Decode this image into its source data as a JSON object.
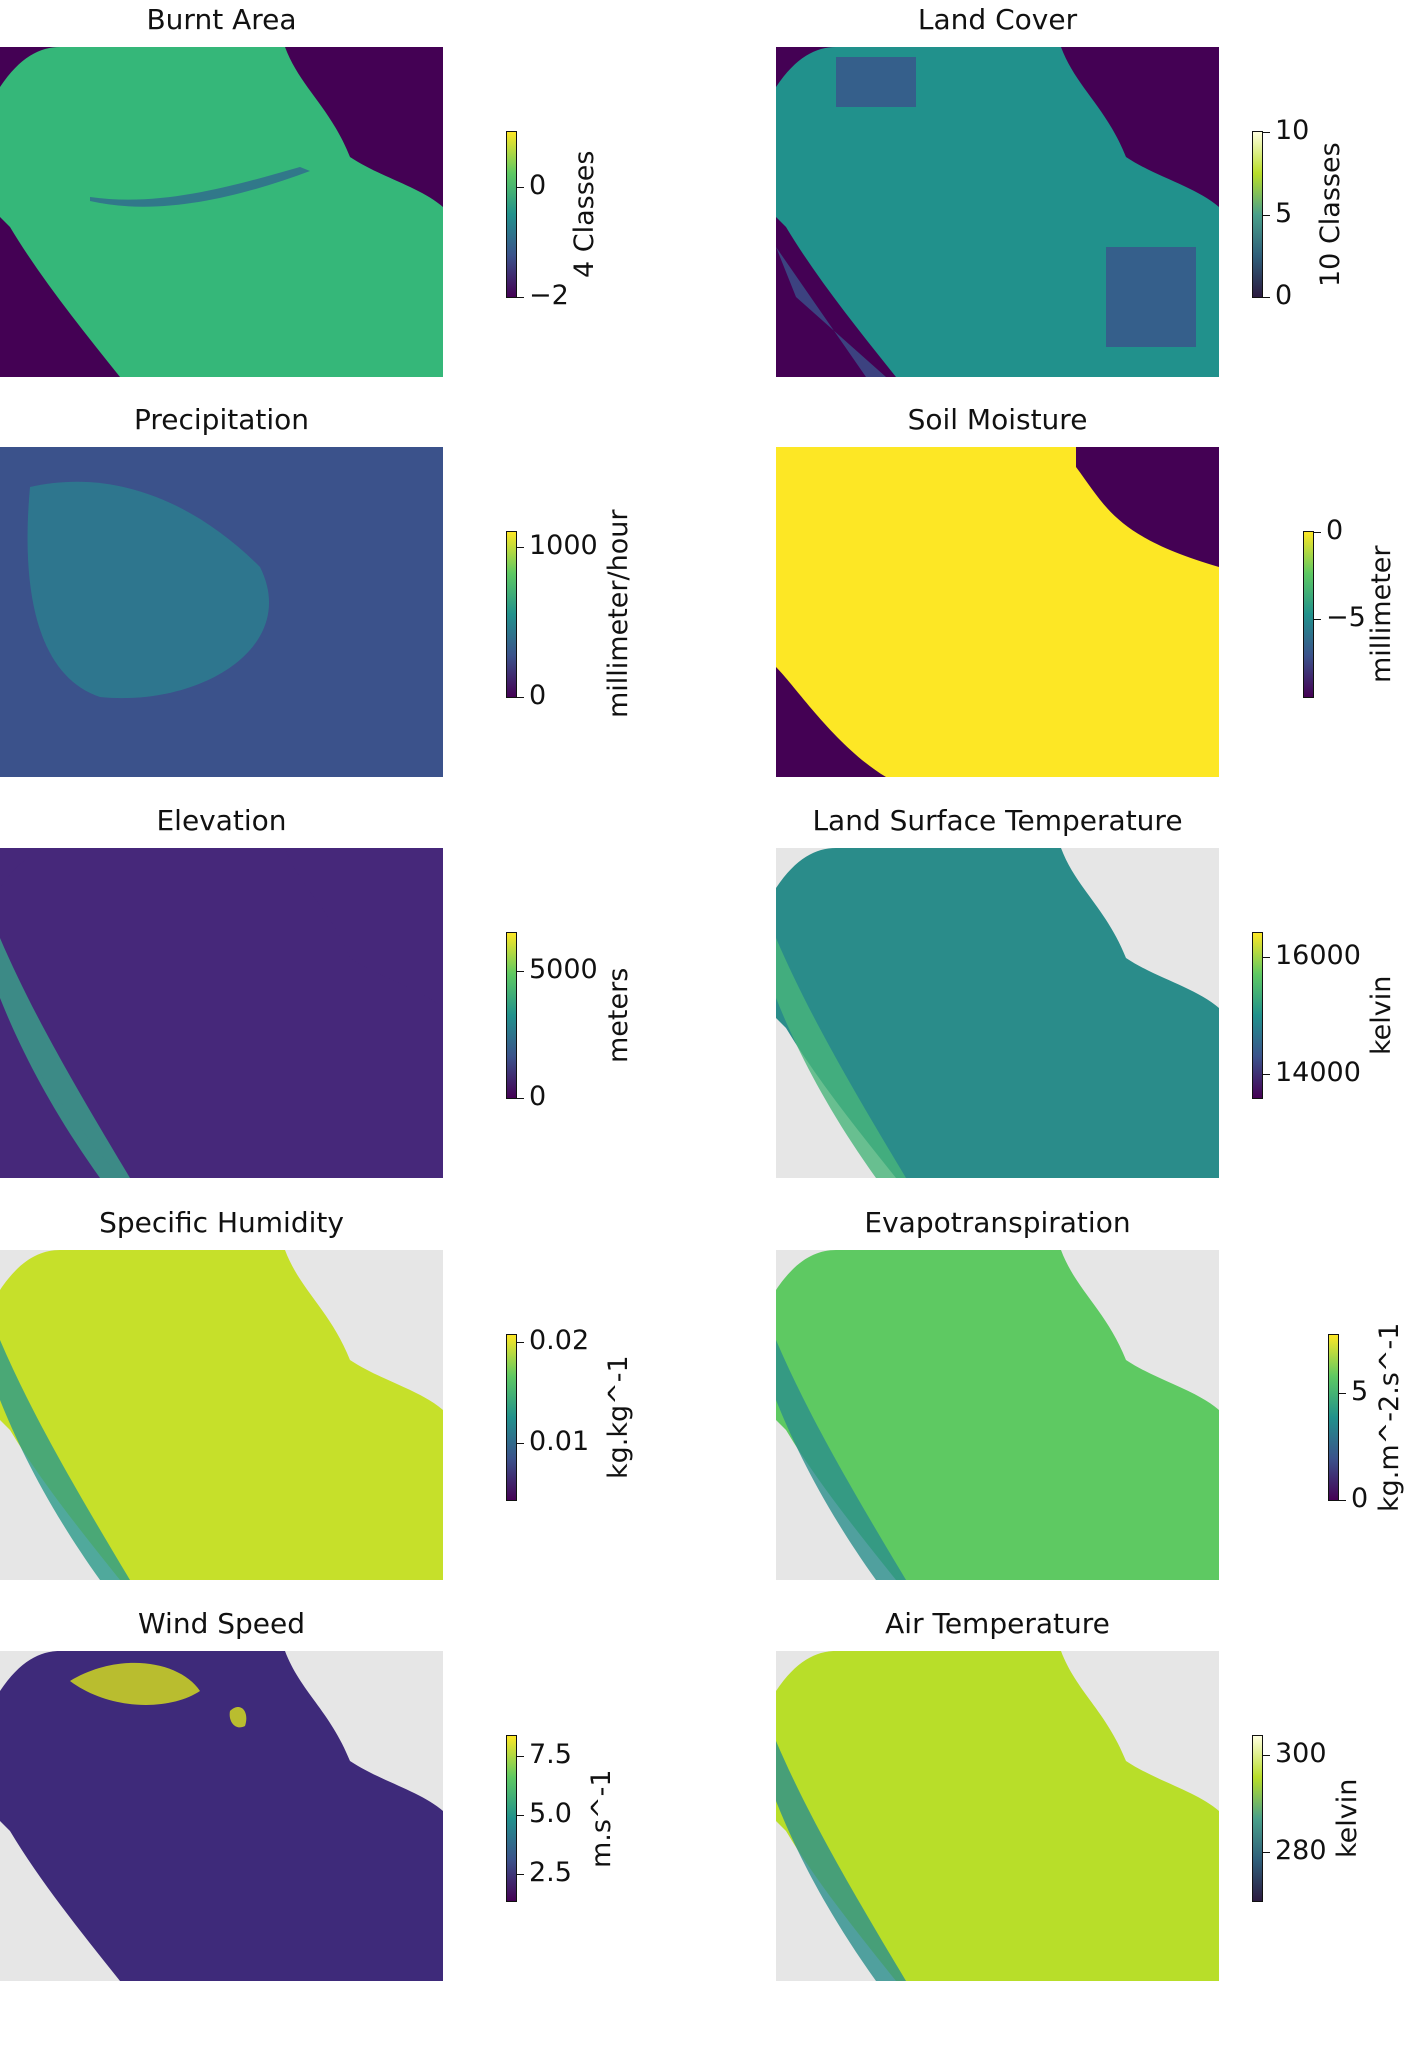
{
  "chart_data": [
    {
      "type": "heatmap",
      "title": "Burnt Area",
      "colorbar_label": "4 Classes",
      "vmin": -2,
      "vmax": 1,
      "ticks": [
        0,
        -2
      ],
      "tick_labels": [
        "0",
        "−2"
      ],
      "colors": {
        "land": "#35b779",
        "bg": "#440154",
        "accent": "#31688e"
      }
    },
    {
      "type": "heatmap",
      "title": "Land Cover",
      "colorbar_label": "10 Classes",
      "vmin": 0,
      "vmax": 10,
      "ticks": [
        10,
        5,
        0
      ],
      "tick_labels": [
        "10",
        "5",
        "0"
      ],
      "colors": {
        "land": "#21918c",
        "bg": "#440154",
        "accent": "#3b528b"
      }
    },
    {
      "type": "heatmap",
      "title": "Precipitation",
      "colorbar_label": "millimeter/hour",
      "vmin": 0,
      "vmax": 1100,
      "ticks": [
        1000,
        0
      ],
      "tick_labels": [
        "1000",
        "0"
      ],
      "colors": {
        "land": "#3b528b",
        "bg": "#3b528b",
        "accent": "#2c7f8e"
      }
    },
    {
      "type": "heatmap",
      "title": "Soil Moisture",
      "colorbar_label": "millimeter",
      "vmin": -9.5,
      "vmax": 0,
      "ticks": [
        0,
        -5
      ],
      "tick_labels": [
        "0",
        "−5"
      ],
      "colors": {
        "land": "#fde725",
        "bg": "#440154",
        "accent": "#fde725"
      }
    },
    {
      "type": "heatmap",
      "title": "Elevation",
      "colorbar_label": "meters",
      "vmin": 0,
      "vmax": 6500,
      "ticks": [
        5000,
        0
      ],
      "tick_labels": [
        "5000",
        "0"
      ],
      "colors": {
        "land": "#46287a",
        "bg": "#46287a",
        "accent": "#3aa38a"
      }
    },
    {
      "type": "heatmap",
      "title": "Land Surface Temperature",
      "colorbar_label": "kelvin",
      "vmin": 13600,
      "vmax": 16400,
      "ticks": [
        16000,
        14000
      ],
      "tick_labels": [
        "16000",
        "14000"
      ],
      "colors": {
        "land": "#2a8c8a",
        "bg": "#e6e6e6",
        "accent": "#49b57a"
      }
    },
    {
      "type": "heatmap",
      "title": "Specific Humidity",
      "colorbar_label": "kg.kg^-1",
      "vmin": 0.0043,
      "vmax": 0.0207,
      "ticks": [
        0.02,
        0.01
      ],
      "tick_labels": [
        "0.02",
        "0.01"
      ],
      "colors": {
        "land": "#c6e02a",
        "bg": "#e6e6e6",
        "accent": "#2a9a8a"
      }
    },
    {
      "type": "heatmap",
      "title": "Evapotranspiration",
      "colorbar_label": "kg.m^-2.s^-1",
      "vmin": 0,
      "vmax": 7.7,
      "ticks": [
        5,
        0
      ],
      "tick_labels": [
        "5",
        "0"
      ],
      "colors": {
        "land": "#5ec962",
        "bg": "#e6e6e6",
        "accent": "#2a8f8c"
      }
    },
    {
      "type": "heatmap",
      "title": "Wind Speed",
      "colorbar_label": "m.s^-1",
      "vmin": 1.37,
      "vmax": 8.36,
      "ticks": [
        7.5,
        5.0,
        2.5
      ],
      "tick_labels": [
        "7.5",
        "5.0",
        "2.5"
      ],
      "colors": {
        "land": "#3e2a7a",
        "bg": "#e6e6e6",
        "accent": "#d8e21d"
      }
    },
    {
      "type": "heatmap",
      "title": "Air Temperature",
      "colorbar_label": "kelvin",
      "vmin": 270,
      "vmax": 304,
      "ticks": [
        300,
        280
      ],
      "tick_labels": [
        "300",
        "280"
      ],
      "colors": {
        "land": "#b8de29",
        "bg": "#e6e6e6",
        "accent": "#2a8f8c"
      }
    }
  ]
}
